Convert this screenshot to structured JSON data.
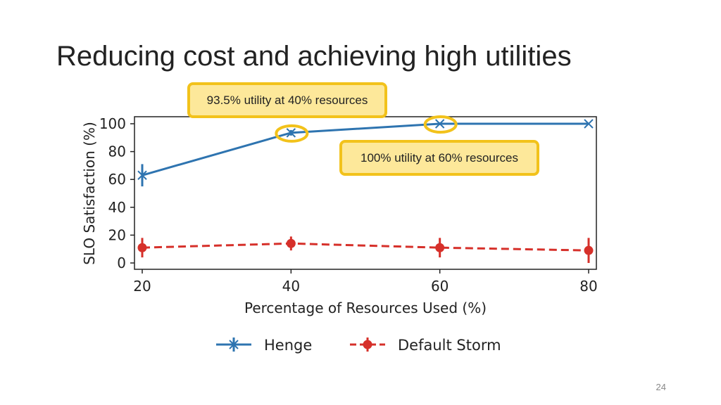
{
  "slide": {
    "title": "Reducing cost and achieving high utilities",
    "page_number": "24"
  },
  "callouts": [
    {
      "text": "93.5% utility at 40% resources"
    },
    {
      "text": "100% utility at 60% resources"
    }
  ],
  "colors": {
    "henge": "#2e74b0",
    "storm": "#d6302a",
    "highlight": "#f2c21b",
    "callout_fill": "#fde89a"
  },
  "chart_data": {
    "type": "line",
    "title": "",
    "xlabel": "Percentage of Resources Used (%)",
    "ylabel": "SLO Satisfaction (%)",
    "xlim": [
      20,
      80
    ],
    "ylim": [
      0,
      105
    ],
    "x": [
      20,
      40,
      60,
      80
    ],
    "xticks": [
      20,
      40,
      60,
      80
    ],
    "yticks": [
      0,
      20,
      40,
      60,
      80,
      100
    ],
    "legend_position": "bottom",
    "grid": false,
    "series": [
      {
        "name": "Henge",
        "values": [
          63,
          93.5,
          100,
          100
        ],
        "errors": [
          8,
          2,
          1,
          0
        ],
        "marker": "x",
        "linestyle": "solid",
        "color": "#2e74b0"
      },
      {
        "name": "Default Storm",
        "values": [
          11,
          14,
          11,
          9
        ],
        "errors": [
          7,
          5,
          7,
          9
        ],
        "marker": "o",
        "linestyle": "dashed",
        "color": "#d6302a"
      }
    ],
    "highlights": [
      {
        "x": 40,
        "y": 93.5
      },
      {
        "x": 60,
        "y": 100
      }
    ]
  }
}
